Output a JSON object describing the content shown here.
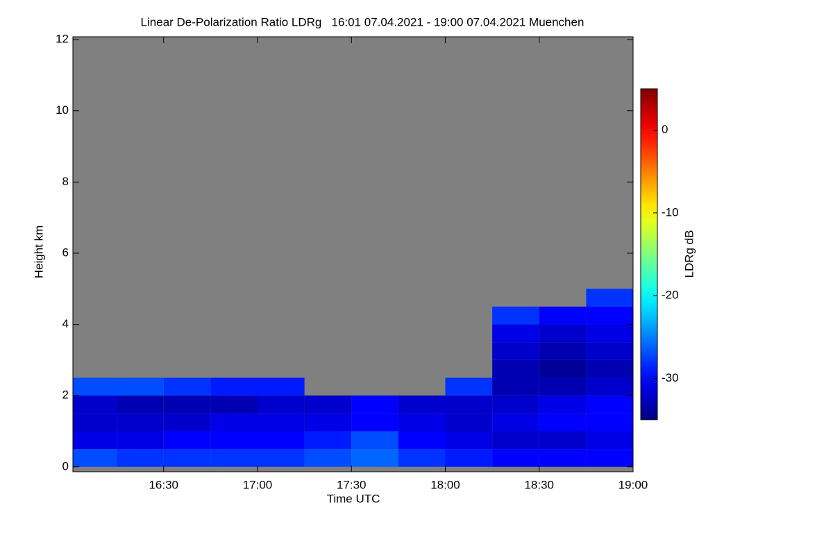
{
  "chart_data": {
    "type": "heatmap",
    "title": "Linear De-Polarization Ratio LDRg   16:01 07.04.2021 - 19:00 07.04.2021 Muenchen",
    "xlabel": "Time UTC",
    "ylabel": "Height km",
    "colorbar_label": "LDRg dB",
    "colormap": "jet",
    "missing_color": "#808080",
    "xlim": [
      16.0167,
      19.0
    ],
    "xticks": [
      {
        "value": 16.5,
        "label": "16:30"
      },
      {
        "value": 17.0,
        "label": "17:00"
      },
      {
        "value": 17.5,
        "label": "17:30"
      },
      {
        "value": 18.0,
        "label": "18:00"
      },
      {
        "value": 18.5,
        "label": "18:30"
      },
      {
        "value": 19.0,
        "label": "19:00"
      }
    ],
    "ylim": [
      -0.14,
      12.08
    ],
    "yticks": [
      0,
      2,
      4,
      6,
      8,
      10,
      12
    ],
    "clim": [
      -35,
      5
    ],
    "cticks": [
      0,
      -10,
      -20,
      -30
    ],
    "x_bins": [
      16.0167,
      16.25,
      16.5,
      16.75,
      17.0,
      17.25,
      17.5,
      17.75,
      18.0,
      18.25,
      18.5,
      18.75,
      19.0
    ],
    "y_bins": [
      0,
      0.5,
      1.0,
      1.5,
      2.0,
      2.5,
      3.0,
      3.5,
      4.0,
      4.5,
      5.0
    ],
    "values": [
      [
        -27,
        -31,
        -32,
        -32,
        -27,
        null,
        null,
        null,
        null,
        null
      ],
      [
        -28,
        -31,
        -32,
        -33,
        -27,
        null,
        null,
        null,
        null,
        null
      ],
      [
        -28,
        -30,
        -32,
        -33,
        -28,
        null,
        null,
        null,
        null,
        null
      ],
      [
        -28,
        -30,
        -31,
        -33,
        -29,
        null,
        null,
        null,
        null,
        null
      ],
      [
        -28,
        -30,
        -31,
        -32,
        -29,
        null,
        null,
        null,
        null,
        null
      ],
      [
        -27,
        -29,
        -31,
        -32,
        null,
        null,
        null,
        null,
        null,
        null
      ],
      [
        -26,
        -27,
        -30,
        -30,
        null,
        null,
        null,
        null,
        null,
        null
      ],
      [
        -28,
        -30,
        -31,
        -32,
        null,
        null,
        null,
        null,
        null,
        null
      ],
      [
        -29,
        -31,
        -32,
        -32,
        -28,
        null,
        null,
        null,
        null,
        null
      ],
      [
        -30,
        -32,
        -31,
        -32,
        -33,
        -33,
        -32,
        -31,
        -28,
        null
      ],
      [
        -30,
        -32,
        -30,
        -31,
        -33,
        -34,
        -33,
        -32,
        -30,
        null
      ],
      [
        -30,
        -31,
        -30,
        -30,
        -32,
        -33,
        -32,
        -31,
        -30,
        -28
      ]
    ]
  }
}
